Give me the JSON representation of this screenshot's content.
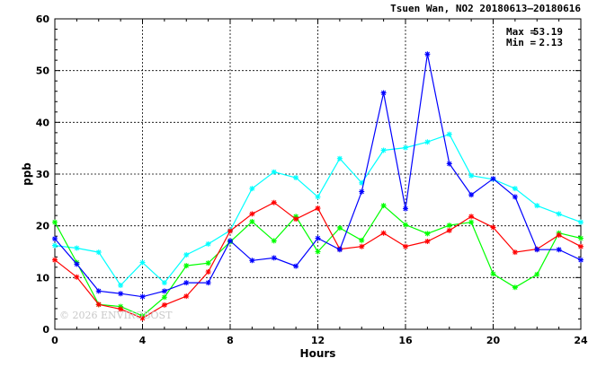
{
  "chart_data": {
    "type": "line",
    "title": "Tsuen Wan, NO2 20180613–20180616",
    "xlabel": "Hours",
    "ylabel": "ppb",
    "xlim": [
      0,
      24
    ],
    "ylim": [
      0,
      60
    ],
    "x_ticks": [
      "0",
      "4",
      "8",
      "12",
      "16",
      "20",
      "24"
    ],
    "y_ticks": [
      "0",
      "10",
      "20",
      "30",
      "40",
      "50",
      "60"
    ],
    "grid": true,
    "stats": {
      "max_label": "Max =",
      "max_value": "53.19",
      "min_label": "Min =",
      "min_value": "2.13"
    },
    "watermark": "© 2026  ENVIROBOST",
    "x": [
      0,
      1,
      2,
      3,
      4,
      5,
      6,
      7,
      8,
      9,
      10,
      11,
      12,
      13,
      14,
      15,
      16,
      17,
      18,
      19,
      20,
      21,
      22,
      23,
      24
    ],
    "series": [
      {
        "color": "#00ffff",
        "values": [
          16.2,
          15.7,
          14.9,
          8.5,
          12.9,
          9.0,
          14.4,
          16.5,
          19.1,
          27.2,
          30.4,
          29.3,
          25.6,
          33.0,
          28.3,
          34.6,
          35.1,
          36.2,
          37.7,
          29.7,
          29.0,
          27.2,
          23.9,
          22.3,
          20.7
        ]
      },
      {
        "color": "#00ff00",
        "values": [
          20.7,
          12.9,
          4.8,
          4.4,
          2.6,
          6.2,
          12.3,
          12.8,
          16.9,
          20.8,
          17.1,
          21.8,
          15.0,
          19.6,
          17.2,
          23.9,
          20.2,
          18.5,
          20.1,
          20.7,
          10.7,
          8.1,
          10.6,
          18.6,
          17.6
        ]
      },
      {
        "color": "#ff0000",
        "values": [
          13.4,
          10.1,
          4.8,
          3.9,
          2.13,
          4.7,
          6.4,
          11.1,
          19.0,
          22.3,
          24.5,
          21.3,
          23.4,
          15.5,
          16.0,
          18.6,
          16.0,
          17.0,
          19.1,
          21.8,
          19.7,
          14.9,
          15.5,
          18.2,
          16.0
        ]
      },
      {
        "color": "#0000ff",
        "values": [
          17.5,
          12.6,
          7.4,
          6.9,
          6.3,
          7.4,
          9.0,
          9.0,
          17.1,
          13.3,
          13.8,
          12.2,
          17.6,
          15.4,
          26.6,
          45.7,
          23.3,
          53.19,
          32.0,
          26.0,
          29.1,
          25.6,
          15.4,
          15.4,
          13.4
        ]
      }
    ]
  }
}
